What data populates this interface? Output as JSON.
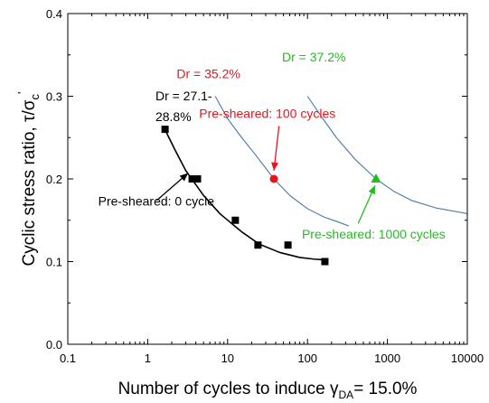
{
  "chart_data": {
    "type": "scatter",
    "xlabel": "Number of cycles to induce γ",
    "xlabel_sub": "DA",
    "xlabel_tail": "= 15.0%",
    "ylabel": "Cyclic stress ratio, τ/σ",
    "ylabel_sub": "c",
    "ylabel_sup": "'",
    "x_scale": "log",
    "xlim": [
      0.1,
      10000
    ],
    "ylim": [
      0.0,
      0.4
    ],
    "x_ticks": [
      {
        "value": 0.1,
        "label": "0.1"
      },
      {
        "value": 1,
        "label": "1"
      },
      {
        "value": 10,
        "label": "10"
      },
      {
        "value": 100,
        "label": "100"
      },
      {
        "value": 1000,
        "label": "1000"
      },
      {
        "value": 10000,
        "label": "10000"
      }
    ],
    "y_ticks": [
      {
        "value": 0.0,
        "label": "0.0"
      },
      {
        "value": 0.1,
        "label": "0.1"
      },
      {
        "value": 0.2,
        "label": "0.2"
      },
      {
        "value": 0.3,
        "label": "0.3"
      },
      {
        "value": 0.4,
        "label": "0.4"
      }
    ],
    "grid": false,
    "series": [
      {
        "color": "#000000",
        "marker": "square",
        "points": [
          {
            "x": 1.65,
            "y": 0.26
          },
          {
            "x": 3.6,
            "y": 0.2
          },
          {
            "x": 4.2,
            "y": 0.2
          },
          {
            "x": 12.5,
            "y": 0.15
          },
          {
            "x": 24,
            "y": 0.12
          },
          {
            "x": 57,
            "y": 0.12
          },
          {
            "x": 165,
            "y": 0.1
          }
        ],
        "fit_curve": [
          [
            1.6,
            0.262
          ],
          [
            2.2,
            0.235
          ],
          [
            3.0,
            0.21
          ],
          [
            5.0,
            0.18
          ],
          [
            8,
            0.158
          ],
          [
            15,
            0.136
          ],
          [
            25,
            0.121
          ],
          [
            45,
            0.111
          ],
          [
            80,
            0.105
          ],
          [
            120,
            0.103
          ],
          [
            170,
            0.102
          ]
        ]
      },
      {
        "color": "#e8141b",
        "marker": "circle",
        "points": [
          {
            "x": 38,
            "y": 0.2
          }
        ],
        "fit_curve": [
          [
            7,
            0.3
          ],
          [
            10,
            0.273
          ],
          [
            15,
            0.25
          ],
          [
            22,
            0.23
          ],
          [
            38,
            0.2
          ],
          [
            60,
            0.18
          ],
          [
            100,
            0.164
          ],
          [
            160,
            0.154
          ],
          [
            240,
            0.148
          ],
          [
            330,
            0.143
          ]
        ]
      },
      {
        "color": "#1fbf1f",
        "marker": "triangle",
        "points": [
          {
            "x": 720,
            "y": 0.2
          }
        ],
        "fit_curve": [
          [
            100,
            0.3
          ],
          [
            150,
            0.275
          ],
          [
            230,
            0.25
          ],
          [
            400,
            0.223
          ],
          [
            720,
            0.2
          ],
          [
            1200,
            0.185
          ],
          [
            2000,
            0.174
          ],
          [
            4000,
            0.165
          ],
          [
            10000,
            0.158
          ]
        ]
      }
    ],
    "curve_color": "#4a78a8",
    "annotations": [
      {
        "id": "dr-black-1",
        "text": "Dr = 27.1-",
        "color": "#000000",
        "x": 1.25,
        "y": 0.295
      },
      {
        "id": "dr-black-2",
        "text": "28.8%",
        "color": "#000000",
        "x": 1.25,
        "y": 0.27
      },
      {
        "id": "dr-red",
        "text": "Dr = 35.2%",
        "color": "#e8141b",
        "x": 2.3,
        "y": 0.322
      },
      {
        "id": "dr-green",
        "text": "Dr = 37.2%",
        "color": "#1fbf1f",
        "x": 48,
        "y": 0.342
      },
      {
        "id": "pre-red",
        "text": "Pre-sheared: 100 cycles",
        "color": "#e8141b",
        "x": 4.4,
        "y": 0.274
      },
      {
        "id": "pre-black",
        "text": "Pre-sheared: 0 cycle",
        "color": "#000000",
        "x": 0.24,
        "y": 0.168
      },
      {
        "id": "pre-green",
        "text": "Pre-sheared: 1000 cycles",
        "color": "#1fbf1f",
        "x": 85,
        "y": 0.128
      }
    ],
    "arrows": [
      {
        "id": "arrow-black",
        "color": "#000000",
        "from": [
          1.3,
          0.174
        ],
        "to": [
          3.2,
          0.207
        ]
      },
      {
        "id": "arrow-red",
        "color": "#e8141b",
        "from": [
          44,
          0.264
        ],
        "to": [
          38,
          0.21
        ]
      },
      {
        "id": "arrow-green",
        "color": "#1fbf1f",
        "from": [
          430,
          0.146
        ],
        "to": [
          700,
          0.192
        ]
      }
    ]
  }
}
